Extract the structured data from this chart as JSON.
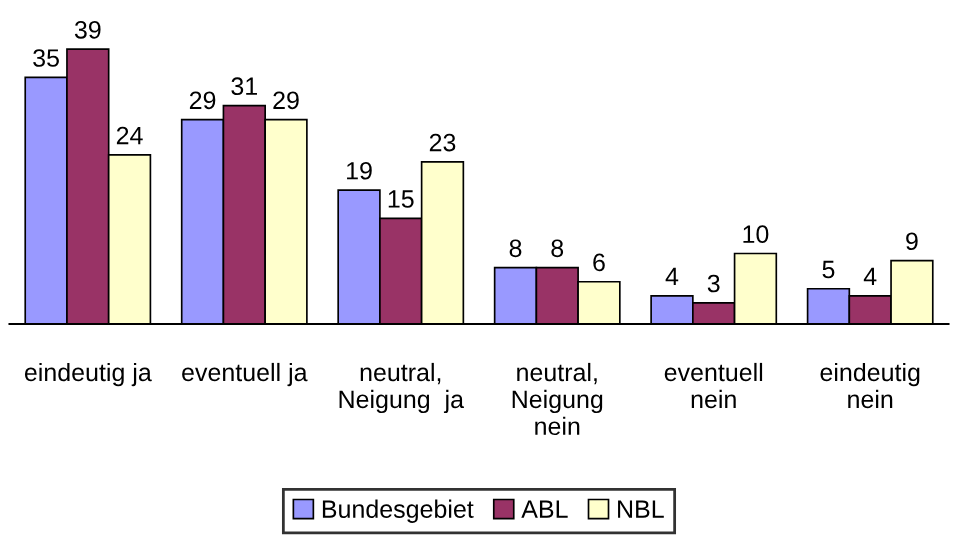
{
  "chart_data": {
    "type": "bar",
    "categories": [
      "eindeutig ja",
      "eventuell ja",
      "neutral,\nNeigung  ja",
      "neutral,\nNeigung\nnein",
      "eventuell\nnein",
      "eindeutig\nnein"
    ],
    "series": [
      {
        "name": "Bundesgebiet",
        "color": "#9999ff",
        "values": [
          35,
          29,
          19,
          8,
          4,
          5
        ]
      },
      {
        "name": "ABL",
        "color": "#993366",
        "values": [
          39,
          31,
          15,
          8,
          3,
          4
        ]
      },
      {
        "name": "NBL",
        "color": "#ffffcc",
        "values": [
          24,
          29,
          23,
          6,
          10,
          9
        ]
      }
    ],
    "data_labels": true,
    "legend": "bottom",
    "grid": false
  }
}
